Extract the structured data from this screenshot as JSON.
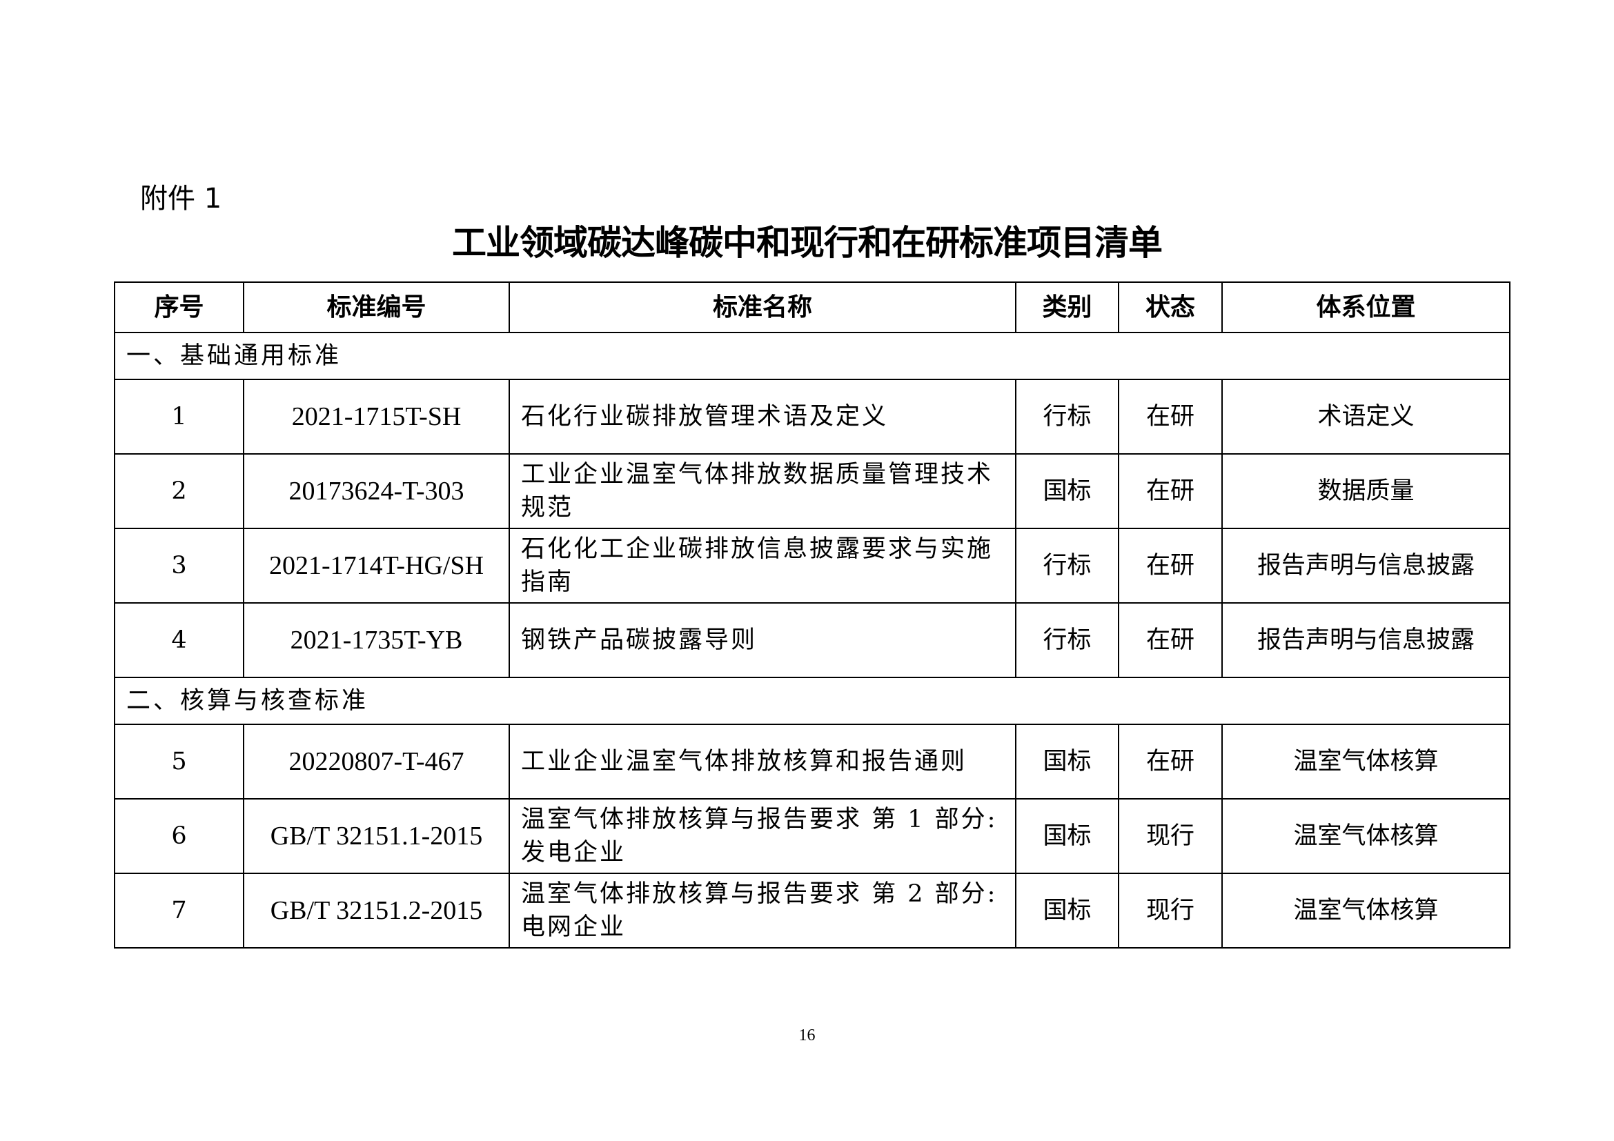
{
  "annex_label": "附件 1",
  "title": "工业领域碳达峰碳中和现行和在研标准项目清单",
  "table": {
    "headers": [
      "序号",
      "标准编号",
      "标准名称",
      "类别",
      "状态",
      "体系位置"
    ],
    "sections": [
      {
        "heading": "一、基础通用标准",
        "rows": [
          {
            "no": "1",
            "code": "2021-1715T-SH",
            "name": "石化行业碳排放管理术语及定义",
            "category": "行标",
            "status": "在研",
            "position": "术语定义"
          },
          {
            "no": "2",
            "code": "20173624-T-303",
            "name": "工业企业温室气体排放数据质量管理技术规范",
            "category": "国标",
            "status": "在研",
            "position": "数据质量"
          },
          {
            "no": "3",
            "code": "2021-1714T-HG/SH",
            "name": "石化化工企业碳排放信息披露要求与实施指南",
            "category": "行标",
            "status": "在研",
            "position": "报告声明与信息披露"
          },
          {
            "no": "4",
            "code": "2021-1735T-YB",
            "name": "钢铁产品碳披露导则",
            "category": "行标",
            "status": "在研",
            "position": "报告声明与信息披露"
          }
        ]
      },
      {
        "heading": "二、核算与核查标准",
        "rows": [
          {
            "no": "5",
            "code": "20220807-T-467",
            "name": "工业企业温室气体排放核算和报告通则",
            "category": "国标",
            "status": "在研",
            "position": "温室气体核算"
          },
          {
            "no": "6",
            "code": "GB/T 32151.1-2015",
            "name": "温室气体排放核算与报告要求 第 1 部分:发电企业",
            "category": "国标",
            "status": "现行",
            "position": "温室气体核算"
          },
          {
            "no": "7",
            "code": "GB/T 32151.2-2015",
            "name": "温室气体排放核算与报告要求 第 2 部分:电网企业",
            "category": "国标",
            "status": "现行",
            "position": "温室气体核算"
          }
        ]
      }
    ]
  },
  "page_number": "16"
}
